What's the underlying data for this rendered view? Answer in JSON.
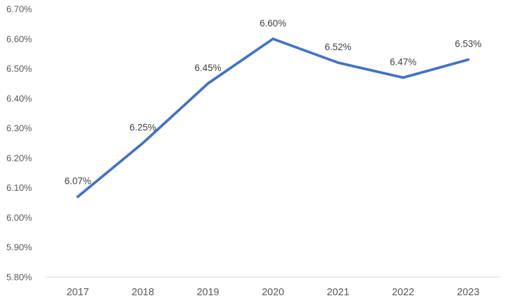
{
  "chart_data": {
    "type": "line",
    "categories": [
      "2017",
      "2018",
      "2019",
      "2020",
      "2021",
      "2022",
      "2023"
    ],
    "series": [
      {
        "name": "rate",
        "values": [
          6.07,
          6.25,
          6.45,
          6.6,
          6.52,
          6.47,
          6.53
        ]
      }
    ],
    "data_labels": [
      "6.07%",
      "6.25%",
      "6.45%",
      "6.60%",
      "6.52%",
      "6.47%",
      "6.53%"
    ],
    "title": "",
    "xlabel": "",
    "ylabel": "",
    "ylim": [
      5.8,
      6.7
    ],
    "ytick_step": 0.1,
    "ytick_labels": [
      "5.80%",
      "5.90%",
      "6.00%",
      "6.10%",
      "6.20%",
      "6.30%",
      "6.40%",
      "6.50%",
      "6.60%",
      "6.70%"
    ],
    "grid": false,
    "legend_position": "none",
    "colors": {
      "line": "#4472C4",
      "axis_line": "#D9D9D9",
      "axis_labels": "#595959",
      "data_labels": "#404040"
    }
  }
}
